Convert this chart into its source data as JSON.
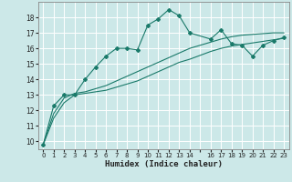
{
  "xlabel": "Humidex (Indice chaleur)",
  "bg_color": "#cce8e8",
  "grid_color": "#ffffff",
  "line_color": "#1a7a6a",
  "xlim": [
    -0.5,
    23.5
  ],
  "ylim": [
    9.5,
    19.0
  ],
  "yticks": [
    10,
    11,
    12,
    13,
    14,
    15,
    16,
    17,
    18
  ],
  "xticks": [
    0,
    1,
    2,
    3,
    4,
    5,
    6,
    7,
    8,
    9,
    10,
    11,
    12,
    13,
    14,
    15,
    16,
    17,
    18,
    19,
    20,
    21,
    22,
    23
  ],
  "xtick_labels": [
    "0",
    "1",
    "2",
    "3",
    "4",
    "5",
    "6",
    "7",
    "8",
    "9",
    "10",
    "11",
    "12",
    "13",
    "14",
    "",
    "16",
    "17",
    "18",
    "19",
    "20",
    "21",
    "22",
    "23"
  ],
  "line1_x": [
    0,
    1,
    2,
    3,
    4,
    5,
    6,
    7,
    8,
    9,
    10,
    11,
    12,
    13,
    14,
    16,
    17,
    18,
    19,
    20,
    21,
    22,
    23
  ],
  "line1_y": [
    9.8,
    12.3,
    13.0,
    13.0,
    14.0,
    14.8,
    15.5,
    16.0,
    16.0,
    15.9,
    17.5,
    17.9,
    18.5,
    18.1,
    17.0,
    16.6,
    17.2,
    16.3,
    16.2,
    15.5,
    16.2,
    16.5,
    16.7
  ],
  "line2_x": [
    0,
    1,
    2,
    3,
    4,
    5,
    6,
    7,
    8,
    9,
    10,
    11,
    12,
    13,
    14,
    16,
    17,
    18,
    19,
    20,
    21,
    22,
    23
  ],
  "line2_y": [
    9.8,
    11.5,
    12.5,
    13.0,
    13.1,
    13.2,
    13.3,
    13.5,
    13.7,
    13.9,
    14.2,
    14.5,
    14.8,
    15.1,
    15.3,
    15.8,
    16.0,
    16.15,
    16.25,
    16.35,
    16.45,
    16.55,
    16.65
  ],
  "line3_x": [
    0,
    1,
    2,
    3,
    4,
    5,
    6,
    7,
    8,
    9,
    10,
    11,
    12,
    13,
    14,
    16,
    17,
    18,
    19,
    20,
    21,
    22,
    23
  ],
  "line3_y": [
    9.8,
    11.8,
    12.8,
    13.1,
    13.2,
    13.4,
    13.6,
    13.9,
    14.2,
    14.5,
    14.8,
    15.1,
    15.4,
    15.7,
    16.0,
    16.4,
    16.6,
    16.75,
    16.85,
    16.9,
    16.95,
    17.0,
    17.0
  ]
}
